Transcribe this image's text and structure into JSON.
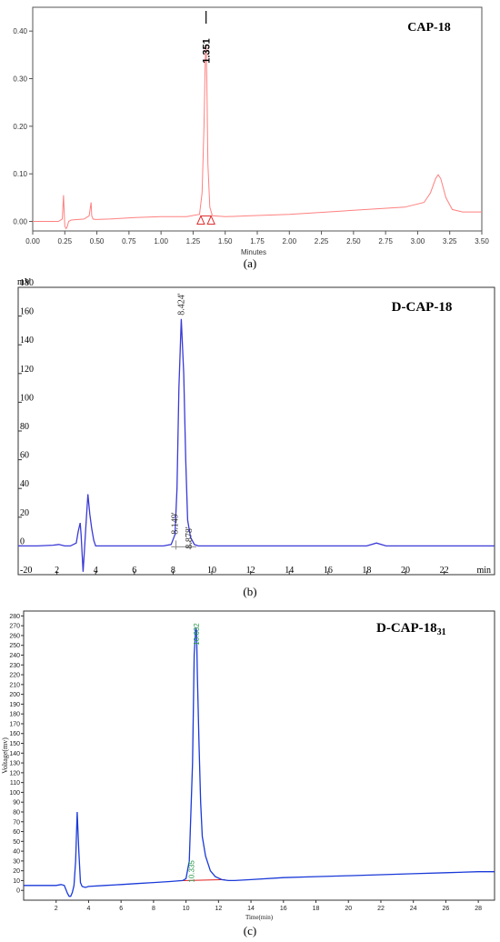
{
  "chart_data": [
    {
      "type": "line",
      "title": "CAP-18",
      "caption": "(a)",
      "xlabel": "Minutes",
      "ylabel": "",
      "xlim": [
        0,
        3.5
      ],
      "ylim": [
        -0.02,
        0.45
      ],
      "xticks": [
        "0.00",
        "0.25",
        "0.50",
        "0.75",
        "1.00",
        "1.25",
        "1.50",
        "1.75",
        "2.00",
        "2.25",
        "2.50",
        "2.75",
        "3.00",
        "3.25",
        "3.50"
      ],
      "yticks": [
        "0.00",
        "0.10",
        "0.20",
        "0.30",
        "0.40"
      ],
      "color": "#ff8080",
      "series": [
        {
          "x": [
            0,
            0.1,
            0.2,
            0.23,
            0.235,
            0.24,
            0.245,
            0.25,
            0.26,
            0.27,
            0.28,
            0.3,
            0.4,
            0.44,
            0.455,
            0.46,
            0.47,
            0.49,
            0.6,
            0.8,
            1.0,
            1.2,
            1.3,
            1.32,
            1.335,
            1.345,
            1.351,
            1.357,
            1.365,
            1.38,
            1.4,
            1.5,
            1.7,
            2.0,
            2.3,
            2.6,
            2.9,
            3.05,
            3.1,
            3.14,
            3.16,
            3.18,
            3.22,
            3.27,
            3.35,
            3.5
          ],
          "y": [
            0,
            0,
            0,
            0.005,
            0.03,
            0.055,
            0.02,
            -0.01,
            -0.015,
            -0.01,
            0,
            0.003,
            0.005,
            0.012,
            0.04,
            0.012,
            0.005,
            0.004,
            0.005,
            0.008,
            0.01,
            0.01,
            0.015,
            0.06,
            0.2,
            0.34,
            0.37,
            0.3,
            0.12,
            0.03,
            0.012,
            0.01,
            0.012,
            0.015,
            0.02,
            0.025,
            0.03,
            0.04,
            0.06,
            0.09,
            0.098,
            0.09,
            0.05,
            0.025,
            0.02,
            0.02
          ]
        }
      ],
      "annotations": [
        {
          "text": "1.351",
          "x": 1.351
        }
      ],
      "markers": [
        {
          "x": 1.31
        },
        {
          "x": 1.39
        }
      ]
    },
    {
      "type": "line",
      "title": "D-CAP-18",
      "caption": "(b)",
      "unit_label": "mV",
      "xunit": "min",
      "xlim": [
        0,
        24.6
      ],
      "ylim": [
        -20,
        180
      ],
      "xticks": [
        "2",
        "4",
        "6",
        "8",
        "10",
        "12",
        "14",
        "16",
        "18",
        "20",
        "22"
      ],
      "yticks": [
        "-20",
        "0",
        "20",
        "40",
        "60",
        "80",
        "100",
        "120",
        "140",
        "160",
        "180"
      ],
      "color": "#3a3ad6",
      "series": [
        {
          "x": [
            0,
            1,
            1.8,
            2.1,
            2.4,
            2.7,
            3.0,
            3.1,
            3.2,
            3.25,
            3.3,
            3.35,
            3.4,
            3.5,
            3.6,
            3.7,
            3.8,
            3.9,
            4.0,
            4.2,
            4.6,
            5.5,
            6.5,
            7.5,
            7.9,
            8.1,
            8.2,
            8.3,
            8.424,
            8.55,
            8.65,
            8.75,
            8.9,
            9.1,
            9.3,
            10,
            12,
            14,
            16,
            18,
            18.5,
            19,
            20,
            22,
            24.6
          ],
          "y": [
            0,
            0,
            0.5,
            1,
            0,
            0,
            2,
            10,
            16,
            8,
            -5,
            -18,
            -8,
            15,
            36,
            22,
            12,
            4,
            0,
            0,
            0,
            0,
            0,
            0,
            1,
            8,
            40,
            110,
            158,
            120,
            60,
            18,
            6,
            1,
            0,
            0,
            0,
            0,
            0,
            0,
            2,
            0,
            0,
            0,
            0
          ]
        }
      ],
      "annotations": [
        {
          "text": "8.424'",
          "x": 8.424
        },
        {
          "text": "8.149'",
          "x": 8.149
        },
        {
          "text": "8.878'",
          "x": 8.878
        }
      ]
    },
    {
      "type": "line",
      "title": "D-CAP-18",
      "title_subscript": "31",
      "caption": "(c)",
      "xlabel": "Time(min)",
      "ylabel": "Voltage(mv)",
      "xlim": [
        0,
        29
      ],
      "ylim": [
        -10,
        285
      ],
      "xticks": [
        "2",
        "4",
        "6",
        "8",
        "10",
        "12",
        "14",
        "16",
        "18",
        "20",
        "22",
        "24",
        "26",
        "28"
      ],
      "yticks": [
        "0",
        "10",
        "20",
        "30",
        "40",
        "50",
        "60",
        "70",
        "80",
        "90",
        "100",
        "110",
        "120",
        "130",
        "140",
        "150",
        "160",
        "170",
        "180",
        "190",
        "200",
        "210",
        "220",
        "230",
        "240",
        "250",
        "260",
        "270",
        "280"
      ],
      "color": "#1a3ad8",
      "series": [
        {
          "x": [
            0,
            1,
            2,
            2.3,
            2.5,
            2.7,
            2.8,
            2.9,
            3.0,
            3.1,
            3.2,
            3.3,
            3.4,
            3.5,
            3.6,
            3.8,
            4.0,
            5,
            6,
            7,
            8,
            9,
            9.8,
            10.0,
            10.2,
            10.4,
            10.5,
            10.6,
            10.65,
            10.7,
            10.8,
            10.9,
            11.0,
            11.2,
            11.5,
            11.8,
            12.2,
            12.6,
            13,
            14,
            16,
            18,
            20,
            22,
            24,
            26,
            28,
            29
          ],
          "y": [
            5,
            5,
            5,
            6,
            5,
            -3,
            -6,
            -6,
            -2,
            5,
            30,
            80,
            40,
            8,
            4,
            3,
            4,
            5,
            6,
            7,
            8,
            9,
            10,
            12,
            30,
            130,
            240,
            268,
            265,
            220,
            150,
            90,
            55,
            35,
            20,
            14,
            11,
            10,
            10,
            11,
            13,
            14,
            15,
            16,
            17,
            18,
            19,
            19
          ]
        }
      ],
      "annotations": [
        {
          "text": "10.632",
          "x": 10.632
        },
        {
          "text": "10.335",
          "x": 10.335
        }
      ]
    }
  ]
}
